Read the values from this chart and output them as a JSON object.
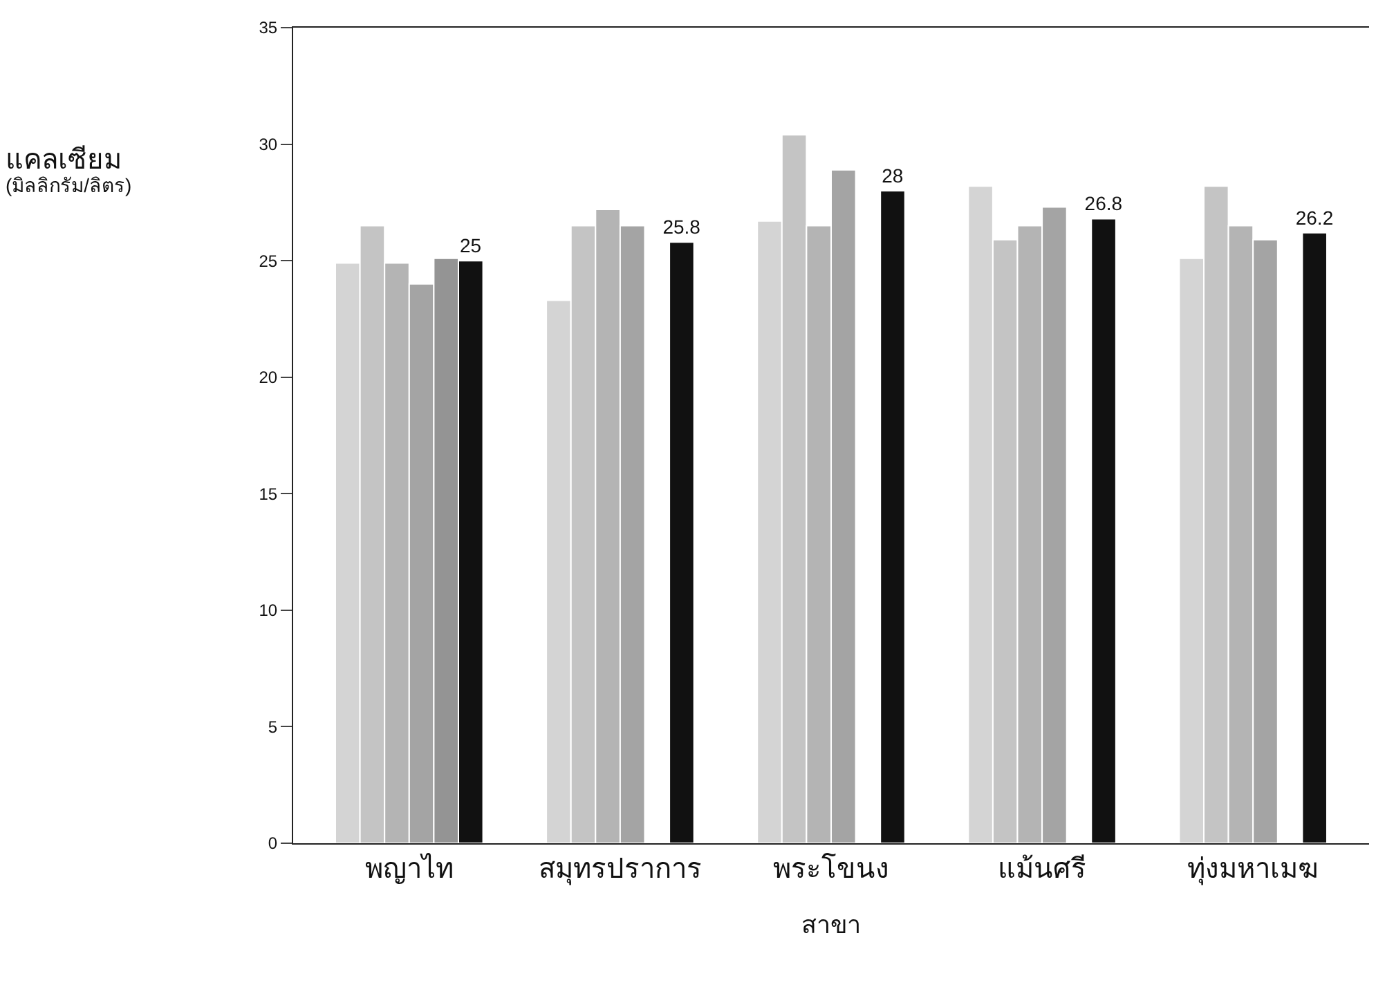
{
  "chart_data": {
    "type": "bar",
    "xlabel": "สาขา",
    "ylabel": "แคลเซียม\n(มิลลิกรัม/ลิตร)",
    "categories": [
      "พญาไท",
      "สมุทรปราการ",
      "พระโขนง",
      "แม้นศรี",
      "ทุ่งมหาเมฆ"
    ],
    "series": [
      {
        "color": "#d4d4d4",
        "values": [
          24.9,
          23.3,
          26.7,
          28.2,
          25.1
        ]
      },
      {
        "color": "#c4c4c4",
        "values": [
          26.5,
          26.5,
          30.4,
          25.9,
          28.2
        ]
      },
      {
        "color": "#b4b4b4",
        "values": [
          24.9,
          27.2,
          26.5,
          26.5,
          26.5
        ]
      },
      {
        "color": "#a4a4a4",
        "values": [
          24.0,
          26.5,
          28.9,
          27.3,
          25.9
        ]
      },
      {
        "color": "#949494",
        "values": [
          25.1,
          null,
          null,
          null,
          null
        ]
      },
      {
        "color": "#111111",
        "values": [
          25,
          25.8,
          28,
          26.8,
          26.2
        ],
        "value_labels": [
          "25",
          "25.8",
          "28",
          "26.8",
          "26.2"
        ]
      }
    ],
    "ylim": [
      0,
      35
    ],
    "yticks": [
      0,
      5,
      10,
      15,
      20,
      25,
      30,
      35
    ],
    "grid": false,
    "legend": false
  }
}
